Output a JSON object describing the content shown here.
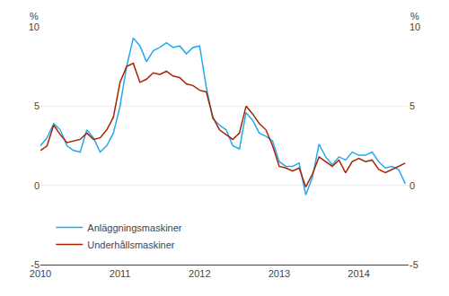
{
  "chart_data": {
    "type": "line",
    "ylabel": "%",
    "y2label": "%",
    "x": [
      2010.0,
      2010.083333,
      2010.166667,
      2010.25,
      2010.333333,
      2010.416667,
      2010.5,
      2010.583333,
      2010.666667,
      2010.75,
      2010.833333,
      2010.916667,
      2011.0,
      2011.083333,
      2011.166667,
      2011.25,
      2011.333333,
      2011.416667,
      2011.5,
      2011.583333,
      2011.666667,
      2011.75,
      2011.833333,
      2011.916667,
      2012.0,
      2012.083333,
      2012.166667,
      2012.25,
      2012.333333,
      2012.416667,
      2012.5,
      2012.583333,
      2012.666667,
      2012.75,
      2012.833333,
      2012.916667,
      2013.0,
      2013.083333,
      2013.166667,
      2013.25,
      2013.333333,
      2013.416667,
      2013.5,
      2013.583333,
      2013.666667,
      2013.75,
      2013.833333,
      2013.916667,
      2014.0,
      2014.083333,
      2014.166667,
      2014.25,
      2014.333333,
      2014.416667,
      2014.5,
      2014.583333
    ],
    "series": [
      {
        "name": "Anläggningsmaskiner",
        "color": "#22AAEE",
        "values": [
          2.5,
          3.0,
          3.9,
          3.5,
          2.5,
          2.2,
          2.1,
          3.5,
          3.0,
          2.1,
          2.5,
          3.3,
          5.0,
          7.5,
          9.3,
          8.8,
          7.8,
          8.5,
          8.7,
          9.0,
          8.7,
          8.8,
          8.3,
          8.7,
          8.8,
          6.2,
          4.2,
          3.8,
          3.5,
          2.5,
          2.3,
          4.6,
          4.1,
          3.3,
          3.1,
          2.8,
          1.5,
          1.2,
          1.2,
          1.4,
          -0.6,
          0.5,
          2.6,
          1.8,
          1.3,
          1.8,
          1.6,
          2.1,
          1.9,
          1.9,
          2.1,
          1.5,
          1.1,
          1.2,
          1.0,
          0.1
        ]
      },
      {
        "name": "Underhållsmaskiner",
        "color": "#AA2200",
        "values": [
          2.2,
          2.5,
          3.8,
          3.2,
          2.7,
          2.8,
          2.9,
          3.3,
          2.9,
          3.0,
          3.5,
          4.3,
          6.5,
          7.5,
          7.7,
          6.5,
          6.7,
          7.1,
          7.0,
          7.2,
          6.9,
          6.8,
          6.4,
          6.3,
          6.0,
          5.9,
          4.3,
          3.5,
          3.2,
          2.9,
          3.3,
          5.0,
          4.5,
          3.9,
          3.5,
          2.5,
          1.2,
          1.1,
          0.9,
          1.1,
          -0.1,
          0.7,
          1.8,
          1.5,
          1.2,
          1.6,
          0.8,
          1.5,
          1.7,
          1.5,
          1.6,
          1.0,
          0.8,
          1.0,
          1.2,
          1.4
        ]
      }
    ],
    "xlim": [
      2010.0,
      2014.625
    ],
    "xticks": [
      2010,
      2011,
      2012,
      2013,
      2014
    ],
    "ylim": [
      -5,
      10
    ],
    "yticks": [
      -5,
      0,
      5,
      10
    ],
    "y2lim": [
      -5,
      10
    ],
    "y2ticks": [
      -5,
      0,
      5,
      10
    ],
    "grid": true,
    "legend": "lower left"
  }
}
